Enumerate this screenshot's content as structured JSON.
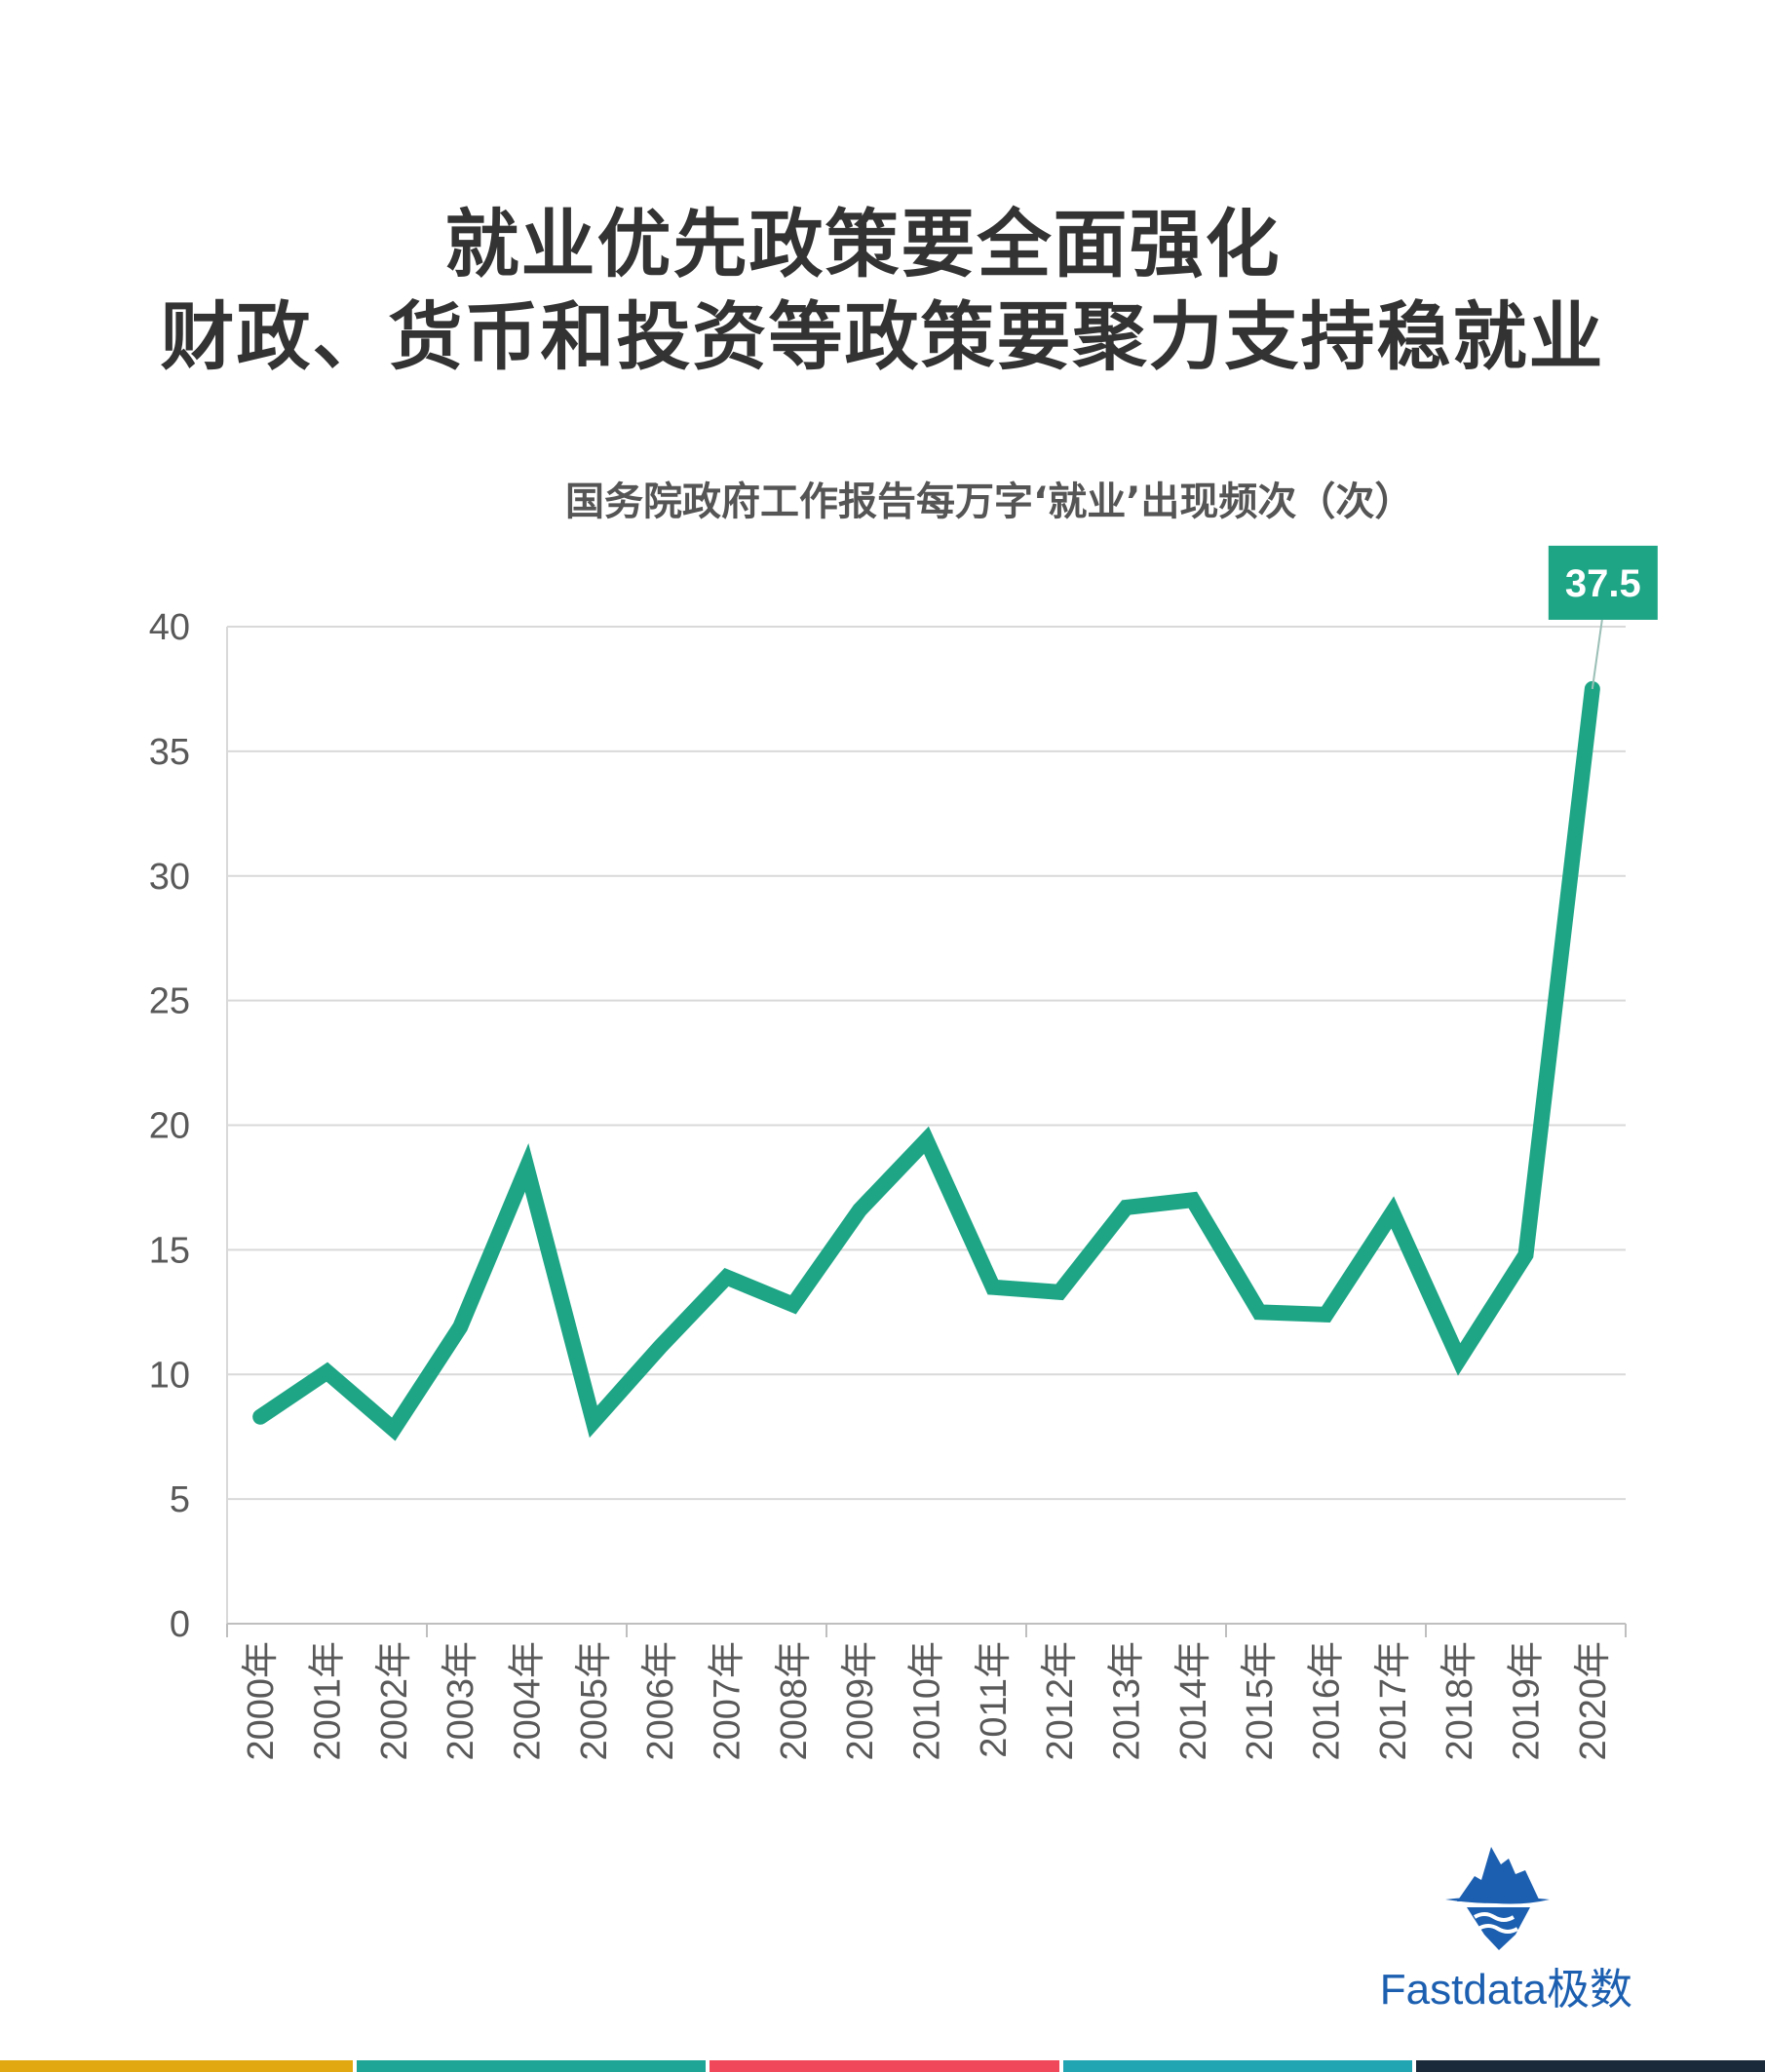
{
  "title_line1": "就业优先政策要全面强化",
  "title_line2": "财政、货币和投资等政策要聚力支持稳就业",
  "subtitle": "国务院政府工作报告每万字‘就业’出现频次（次）",
  "logo_text": "Fastdata极数",
  "logo_icon": "iceberg-icon",
  "colors": {
    "line": "#1ea585",
    "grid": "#d9d9d9",
    "axis_text": "#595959",
    "stripes": [
      "#e2a812",
      "#1ea595",
      "#f0485a",
      "#21a5b2",
      "#1b2a3a"
    ]
  },
  "chart_data": {
    "type": "line",
    "title": "国务院政府工作报告每万字‘就业’出现频次（次）",
    "xlabel": "",
    "ylabel": "",
    "categories": [
      "2000年",
      "2001年",
      "2002年",
      "2003年",
      "2004年",
      "2005年",
      "2006年",
      "2007年",
      "2008年",
      "2009年",
      "2010年",
      "2011年",
      "2012年",
      "2013年",
      "2014年",
      "2015年",
      "2016年",
      "2017年",
      "2018年",
      "2019年",
      "2020年"
    ],
    "values": [
      8.3,
      10.1,
      7.8,
      11.9,
      18.3,
      8.1,
      11.1,
      13.9,
      12.8,
      16.6,
      19.4,
      13.5,
      13.3,
      16.7,
      17.0,
      12.5,
      12.4,
      16.5,
      10.6,
      14.8,
      37.5
    ],
    "yticks": [
      0,
      5,
      10,
      15,
      20,
      25,
      30,
      35,
      40
    ],
    "ylim": [
      0,
      40
    ],
    "grid": true,
    "data_labels": [
      {
        "index": 20,
        "text": "37.5"
      }
    ]
  }
}
